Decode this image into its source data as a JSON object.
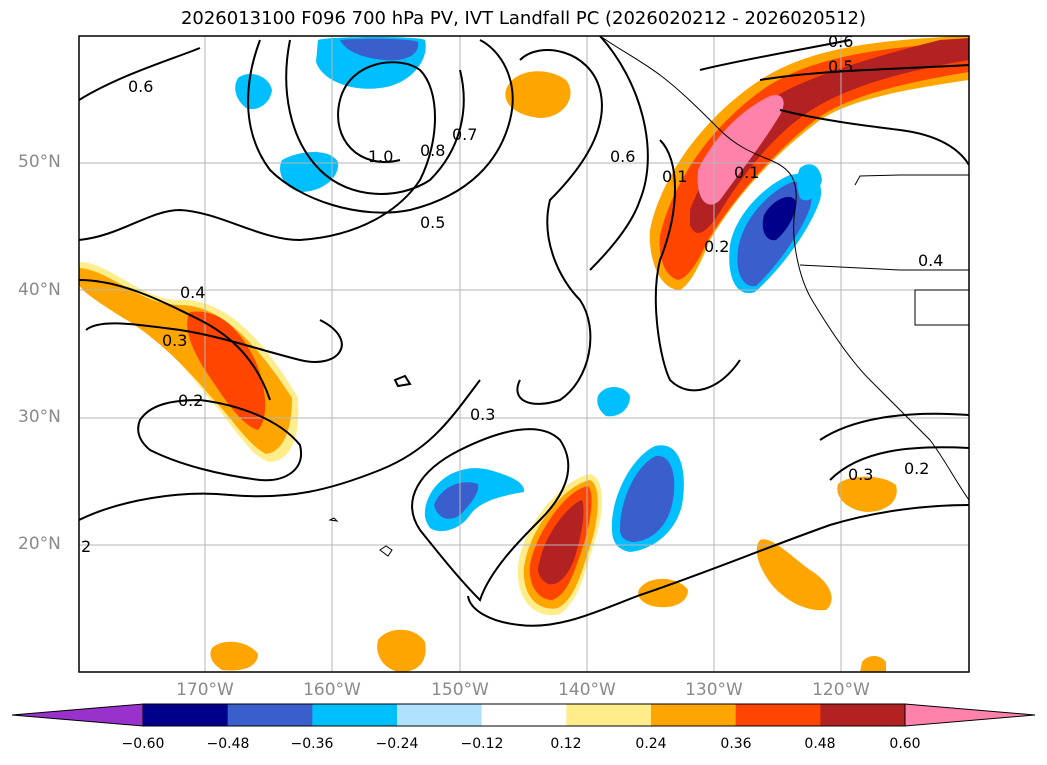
{
  "title": "2026013100 F096 700 hPa PV, IVT Landfall PC (2026020212 - 2026020512)",
  "latitude_labels": [
    "50°N",
    "40°N",
    "30°N",
    "20°N"
  ],
  "longitude_labels": [
    "170°W",
    "160°W",
    "150°W",
    "140°W",
    "130°W",
    "120°W"
  ],
  "contour_labels": [
    "0.6",
    "1.0",
    "0.8",
    "0.7",
    "0.5",
    "0.6",
    "0.6",
    "0.5",
    "0.4",
    "0.3",
    "0.2",
    "0.3",
    "0.2",
    "0.1",
    "0.2",
    "0.4",
    "0.3",
    "0.1",
    "2"
  ],
  "colorbar": {
    "ticks": [
      "−0.60",
      "−0.48",
      "−0.36",
      "−0.24",
      "−0.12",
      "0.12",
      "0.24",
      "0.36",
      "0.48",
      "0.60"
    ],
    "colors": [
      "#9932cc",
      "#00008b",
      "#3a5fcd",
      "#00bfff",
      "#b0e2ff",
      "#ffffff",
      "#ffec8b",
      "#ffa500",
      "#ff4500",
      "#b22222",
      "#ff82ab"
    ]
  }
}
